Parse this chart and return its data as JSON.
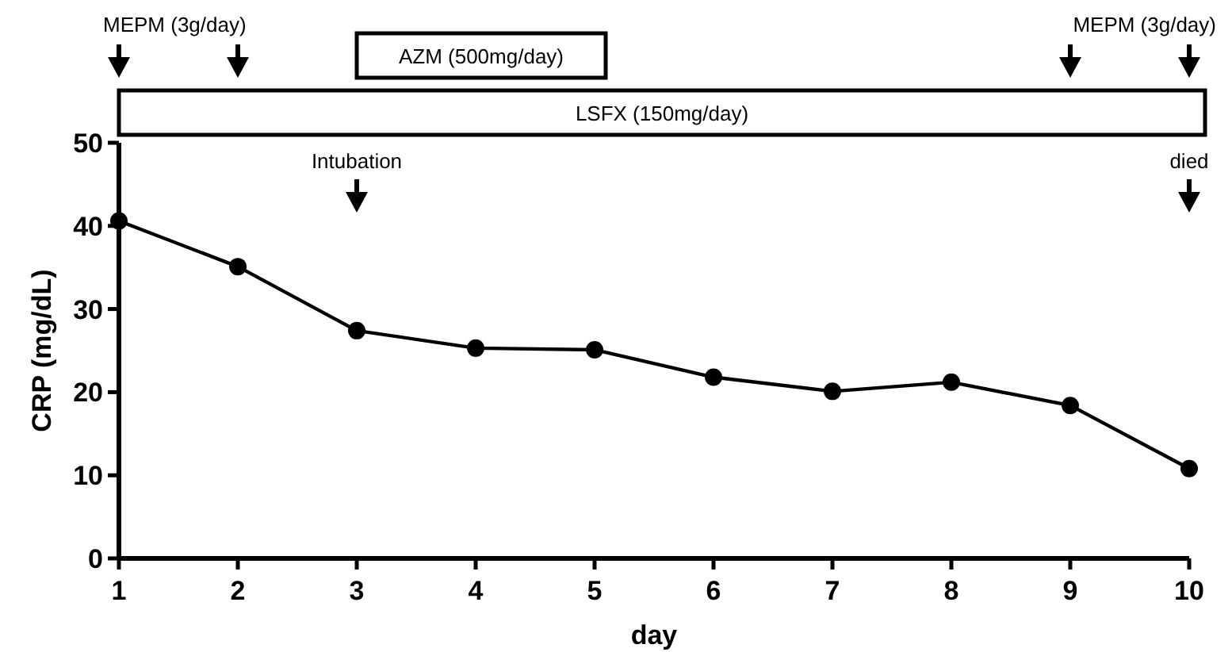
{
  "chart_data": {
    "type": "line",
    "xlabel": "day",
    "ylabel": "CRP (mg/dL)",
    "x": [
      1,
      2,
      3,
      4,
      5,
      6,
      7,
      8,
      9,
      10
    ],
    "series": [
      {
        "color": "#000000",
        "values": [
          40.6,
          35.1,
          27.4,
          25.3,
          25.1,
          21.8,
          20.1,
          21.2,
          18.4,
          10.8
        ]
      }
    ],
    "xlim": [
      1,
      10
    ],
    "xticks": [
      1,
      2,
      3,
      4,
      5,
      6,
      7,
      8,
      9,
      10
    ],
    "ylim": [
      0,
      50
    ],
    "yticks": [
      0,
      10,
      20,
      30,
      40,
      50
    ],
    "marker": "circle",
    "line_style": "solid",
    "annotations": [
      "MEPM (3g/day)",
      "MEPM (3g/day)",
      "AZM (500mg/day)",
      "LSFX (150mg/day)",
      "Intubation",
      "died"
    ]
  }
}
